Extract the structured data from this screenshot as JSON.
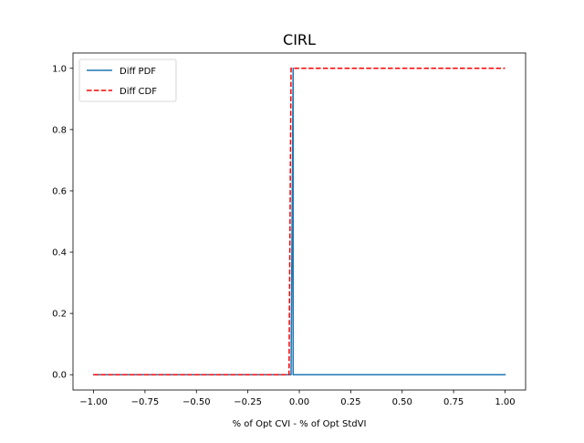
{
  "chart_data": {
    "type": "line",
    "title": "CIRL",
    "xlabel": "% of Opt CVI - % of Opt StdVI",
    "ylabel": "",
    "xlim": [
      -1.1,
      1.1
    ],
    "ylim": [
      -0.05,
      1.05
    ],
    "xticks": [
      -1.0,
      -0.75,
      -0.5,
      -0.25,
      0.0,
      0.25,
      0.5,
      0.75,
      1.0
    ],
    "xtick_labels": [
      "−1.00",
      "−0.75",
      "−0.50",
      "−0.25",
      "0.00",
      "0.25",
      "0.50",
      "0.75",
      "1.00"
    ],
    "yticks": [
      0.0,
      0.2,
      0.4,
      0.6,
      0.8,
      1.0
    ],
    "ytick_labels": [
      "0.0",
      "0.2",
      "0.4",
      "0.6",
      "0.8",
      "1.0"
    ],
    "grid": false,
    "legend_position": "top-left",
    "series": [
      {
        "name": "Diff PDF",
        "color": "#1f77b4",
        "style": "solid",
        "x": [
          -1.0,
          -0.04,
          -0.03,
          -0.03,
          1.0
        ],
        "y": [
          0.0,
          0.0,
          1.0,
          0.0,
          0.0
        ]
      },
      {
        "name": "Diff CDF",
        "color": "#ff0000",
        "style": "dashed",
        "x": [
          -1.0,
          -0.05,
          -0.04,
          1.0
        ],
        "y": [
          0.0,
          0.0,
          1.0,
          1.0
        ]
      }
    ]
  }
}
